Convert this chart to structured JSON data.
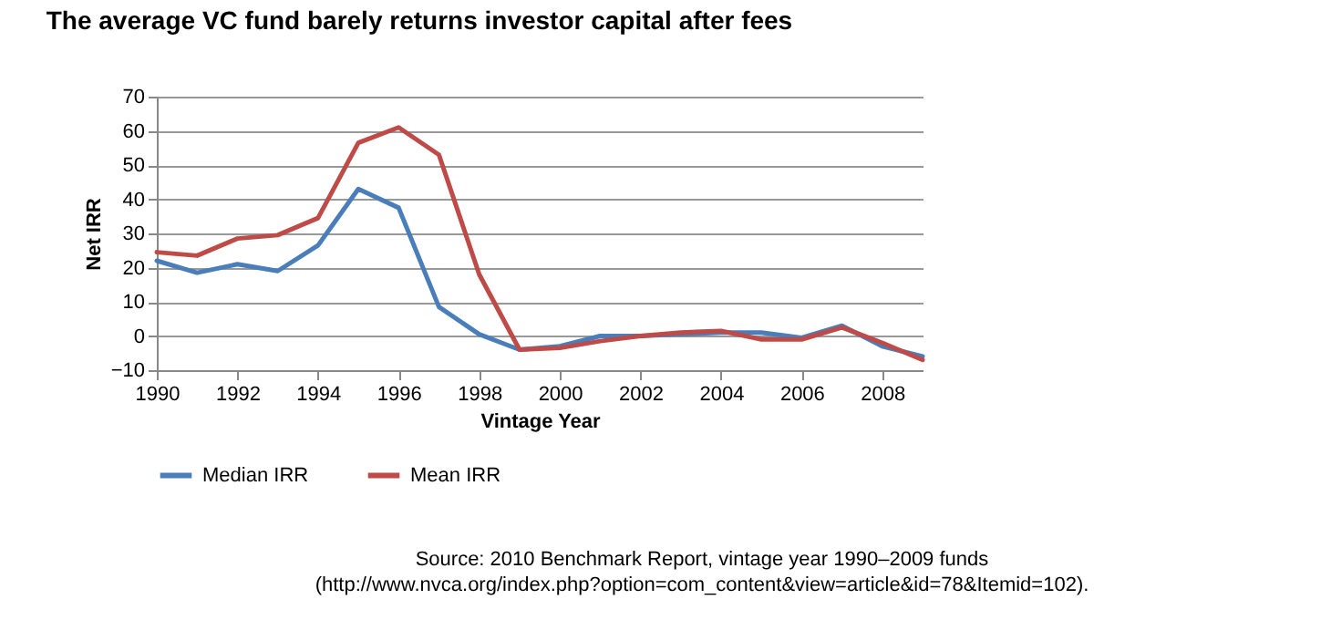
{
  "chart_data": {
    "type": "line",
    "title": "The average VC fund barely returns investor capital after fees",
    "xlabel": "Vintage Year",
    "ylabel": "Net IRR",
    "x": [
      1990,
      1991,
      1992,
      1993,
      1994,
      1995,
      1996,
      1997,
      1998,
      1999,
      2000,
      2001,
      2002,
      2003,
      2004,
      2005,
      2006,
      2007,
      2008,
      2009
    ],
    "series": [
      {
        "name": "Median IRR",
        "color": "#4a7ebb",
        "values": [
          22,
          18.5,
          21,
          19,
          26.5,
          43,
          37.5,
          8.5,
          0.5,
          -4,
          -3,
          0,
          0,
          0.5,
          1,
          1,
          -0.5,
          3,
          -3,
          -6
        ]
      },
      {
        "name": "Mean IRR",
        "color": "#be4b48",
        "values": [
          24.5,
          23.5,
          28.5,
          29.5,
          34.5,
          56.5,
          61,
          53,
          18,
          -4,
          -3.5,
          -1.5,
          0,
          1,
          1.5,
          -1,
          -1,
          2.5,
          -2,
          -7
        ]
      }
    ],
    "xlim": [
      1990,
      2009
    ],
    "xticks": [
      1990,
      1992,
      1994,
      1996,
      1998,
      2000,
      2002,
      2004,
      2006,
      2008
    ],
    "ylim": [
      -10,
      70
    ],
    "yticks": [
      -10,
      0,
      10,
      20,
      30,
      40,
      50,
      60,
      70
    ],
    "grid": "y",
    "legend": "bottom",
    "marker": "none",
    "line_style": "solid",
    "annotations": [
      "Source: 2010 Benchmark Report, vintage year 1990–2009 funds (http://www.nvca.org/index.php?option=com_content&view=article&id=78&Itemid=102)."
    ]
  }
}
